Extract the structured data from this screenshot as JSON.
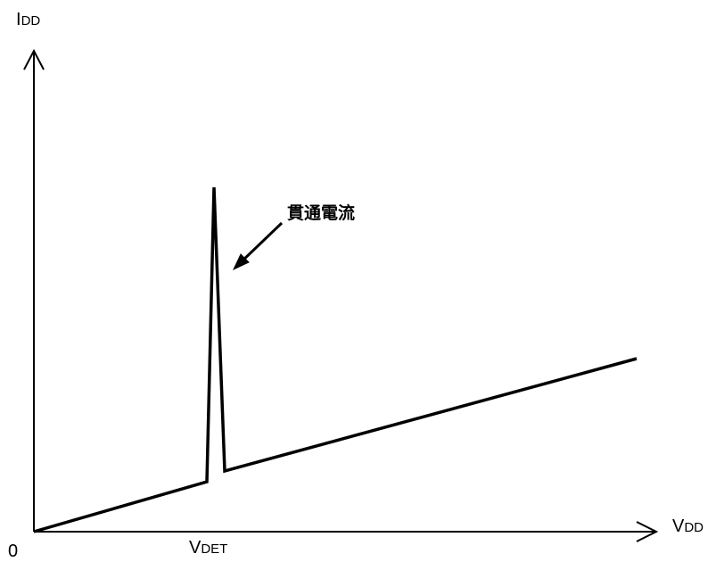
{
  "axes": {
    "y_label_main": "I",
    "y_label_sub": "DD",
    "x_label_main": "V",
    "x_label_sub": "DD",
    "origin_label": "0",
    "marker_label_main": "V",
    "marker_label_sub": "DET"
  },
  "annotation": {
    "text": "貫通電流"
  },
  "colors": {
    "stroke": "#000000",
    "background": "#ffffff"
  }
}
